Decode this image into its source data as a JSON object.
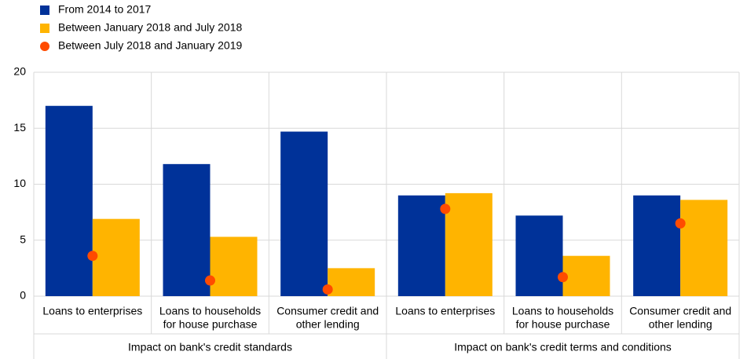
{
  "chart_data": {
    "type": "bar",
    "categories": [
      [
        "Loans to enterprises"
      ],
      [
        "Loans to households",
        "for house purchase"
      ],
      [
        "Consumer credit and",
        "other lending"
      ],
      [
        "Loans to enterprises"
      ],
      [
        "Loans to households",
        "for house purchase"
      ],
      [
        "Consumer credit and",
        "other lending"
      ]
    ],
    "group_labels": [
      "Impact on bank's credit standards",
      "Impact on bank's credit terms and conditions"
    ],
    "series": [
      {
        "name": "From 2014 to 2017",
        "type": "bar",
        "color": "#003299",
        "values": [
          17.0,
          11.8,
          14.7,
          9.0,
          7.2,
          9.0
        ]
      },
      {
        "name": "Between January 2018 and July 2018",
        "type": "bar",
        "color": "#ffb400",
        "values": [
          6.9,
          5.3,
          2.5,
          9.2,
          3.6,
          8.6
        ]
      },
      {
        "name": "Between July 2018 and January 2019",
        "type": "scatter",
        "color": "#ff4b00",
        "values": [
          3.6,
          1.4,
          0.6,
          7.8,
          1.7,
          6.5
        ]
      }
    ],
    "ylim": [
      0,
      20
    ],
    "yticks": [
      0,
      5,
      10,
      15,
      20
    ],
    "grid": true,
    "legend": "top-left"
  }
}
